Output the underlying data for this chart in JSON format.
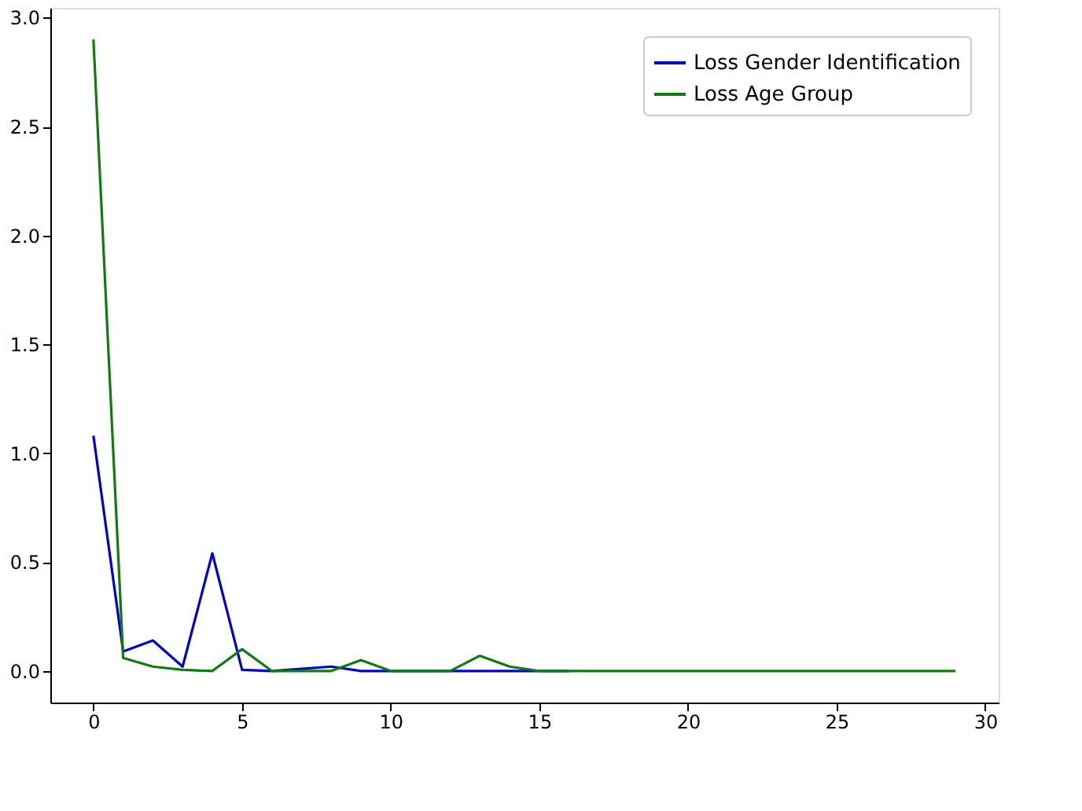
{
  "chart_data": {
    "type": "line",
    "x": [
      0,
      1,
      2,
      3,
      4,
      5,
      6,
      7,
      8,
      9,
      10,
      11,
      12,
      13,
      14,
      15,
      16,
      17,
      18,
      19,
      20,
      21,
      22,
      23,
      24,
      25,
      26,
      27,
      28,
      29
    ],
    "series": [
      {
        "name": "Loss Gender Identification",
        "color": "#0000cc",
        "values": [
          1.08,
          0.09,
          0.14,
          0.02,
          0.54,
          0.005,
          0,
          0.01,
          0.02,
          0,
          0,
          0,
          0,
          0,
          0,
          0,
          0,
          null,
          null,
          null,
          null,
          null,
          null,
          null,
          null,
          null,
          null,
          null,
          null,
          null
        ]
      },
      {
        "name": "Loss Age Group",
        "color": "#117a11",
        "values": [
          2.9,
          0.06,
          0.02,
          0.005,
          0,
          0.1,
          0,
          0,
          0,
          0.05,
          0,
          0,
          0,
          0.07,
          0.02,
          0,
          0,
          0,
          0,
          0,
          0,
          0,
          0,
          0,
          0,
          0,
          0,
          0,
          0,
          0
        ]
      }
    ],
    "xlim": [
      -1.45,
      30.45
    ],
    "ylim": [
      -0.145,
      3.045
    ],
    "xticks": [
      0,
      5,
      10,
      15,
      20,
      25,
      30
    ],
    "yticks": [
      {
        "value": 0,
        "label": "0.0"
      },
      0.5,
      {
        "value": 1,
        "label": "1.0"
      },
      1.5,
      {
        "value": 2,
        "label": "2.0"
      },
      2.5,
      {
        "value": 3,
        "label": "3.0"
      }
    ],
    "grid": false,
    "legend": "top right",
    "line_style": "solid",
    "marker": "none"
  }
}
